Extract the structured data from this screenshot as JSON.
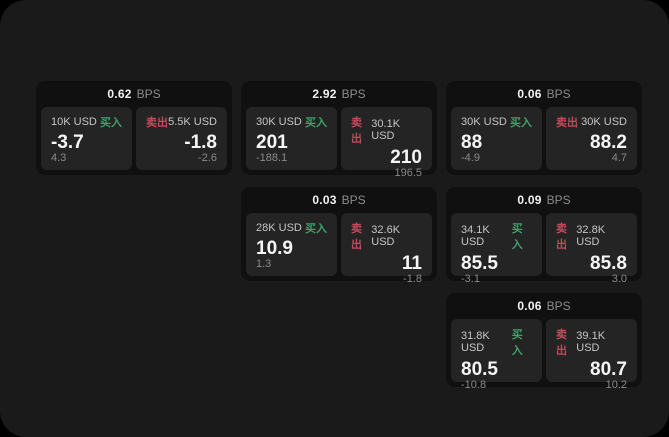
{
  "theme": {
    "frame_bg": "#1a1a1b",
    "card_bg": "#101010",
    "panel_bg": "#242424",
    "buy_color": "#3fa06a",
    "sell_color": "#c24a5a"
  },
  "labels": {
    "bps": "BPS",
    "buy": "买入",
    "sell": "卖出"
  },
  "cards": [
    {
      "bps": "0.62",
      "row": 1,
      "col": 1,
      "buy": {
        "amount": "10K USD",
        "price": "-3.7",
        "delta": "4.3"
      },
      "sell": {
        "amount": "5.5K USD",
        "price": "-1.8",
        "delta": "-2.6"
      }
    },
    {
      "bps": "2.92",
      "row": 1,
      "col": 2,
      "buy": {
        "amount": "30K USD",
        "price": "201",
        "delta": "-188.1"
      },
      "sell": {
        "amount": "30.1K USD",
        "price": "210",
        "delta": "196.5"
      }
    },
    {
      "bps": "0.06",
      "row": 1,
      "col": 3,
      "buy": {
        "amount": "30K USD",
        "price": "88",
        "delta": "-4.9"
      },
      "sell": {
        "amount": "30K USD",
        "price": "88.2",
        "delta": "4.7"
      }
    },
    {
      "bps": "0.03",
      "row": 2,
      "col": 2,
      "buy": {
        "amount": "28K USD",
        "price": "10.9",
        "delta": "1.3"
      },
      "sell": {
        "amount": "32.6K USD",
        "price": "11",
        "delta": "-1.8"
      }
    },
    {
      "bps": "0.09",
      "row": 2,
      "col": 3,
      "buy": {
        "amount": "34.1K USD",
        "price": "85.5",
        "delta": "-3.1"
      },
      "sell": {
        "amount": "32.8K USD",
        "price": "85.8",
        "delta": "3.0"
      }
    },
    {
      "bps": "0.06",
      "row": 3,
      "col": 3,
      "buy": {
        "amount": "31.8K USD",
        "price": "80.5",
        "delta": "-10.8"
      },
      "sell": {
        "amount": "39.1K USD",
        "price": "80.7",
        "delta": "10.2"
      }
    }
  ]
}
